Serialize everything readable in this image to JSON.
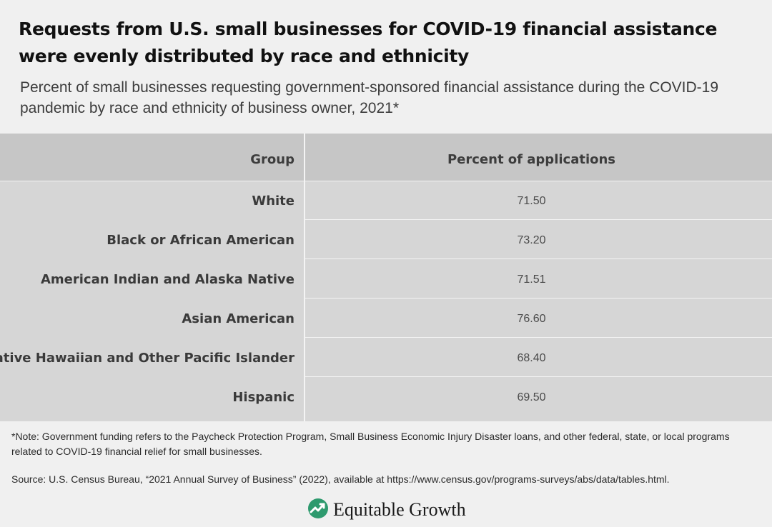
{
  "title": "Requests from U.S. small businesses for COVID-19 financial assistance were evenly distributed by race and ethnicity",
  "subtitle": "Percent of small businesses requesting government-sponsored financial assistance during the COVID-19 pandemic by race and ethnicity of business owner, 2021*",
  "chart_data": {
    "type": "table",
    "columns": [
      "Group",
      "Percent of applications"
    ],
    "rows": [
      {
        "group": "White",
        "value": "71.50"
      },
      {
        "group": "Black or African American",
        "value": "73.20"
      },
      {
        "group": "American Indian and Alaska Native",
        "value": "71.51"
      },
      {
        "group": "Asian American",
        "value": "76.60"
      },
      {
        "group": "Native Hawaiian and Other Pacific Islander",
        "value": "68.40"
      },
      {
        "group": "Hispanic",
        "value": "69.50"
      }
    ]
  },
  "note": "*Note: Government funding refers to the Paycheck Protection Program, Small Business Economic Injury Disaster loans, and other federal, state, or local programs related to COVID-19 financial relief for small businesses.",
  "source": "Source: U.S. Census Bureau, “2021 Annual Survey of Business” (2022), available at https://www.census.gov/programs-surveys/abs/data/tables.html.",
  "logo": {
    "text": "Equitable Growth",
    "icon": "equitable-growth-logo-icon",
    "color": "#2e9a6e"
  },
  "colors": {
    "background": "#f0f0f0",
    "header_bg": "#c6c6c6",
    "body_bg": "#d6d6d6",
    "grid": "#f4f4f4"
  }
}
